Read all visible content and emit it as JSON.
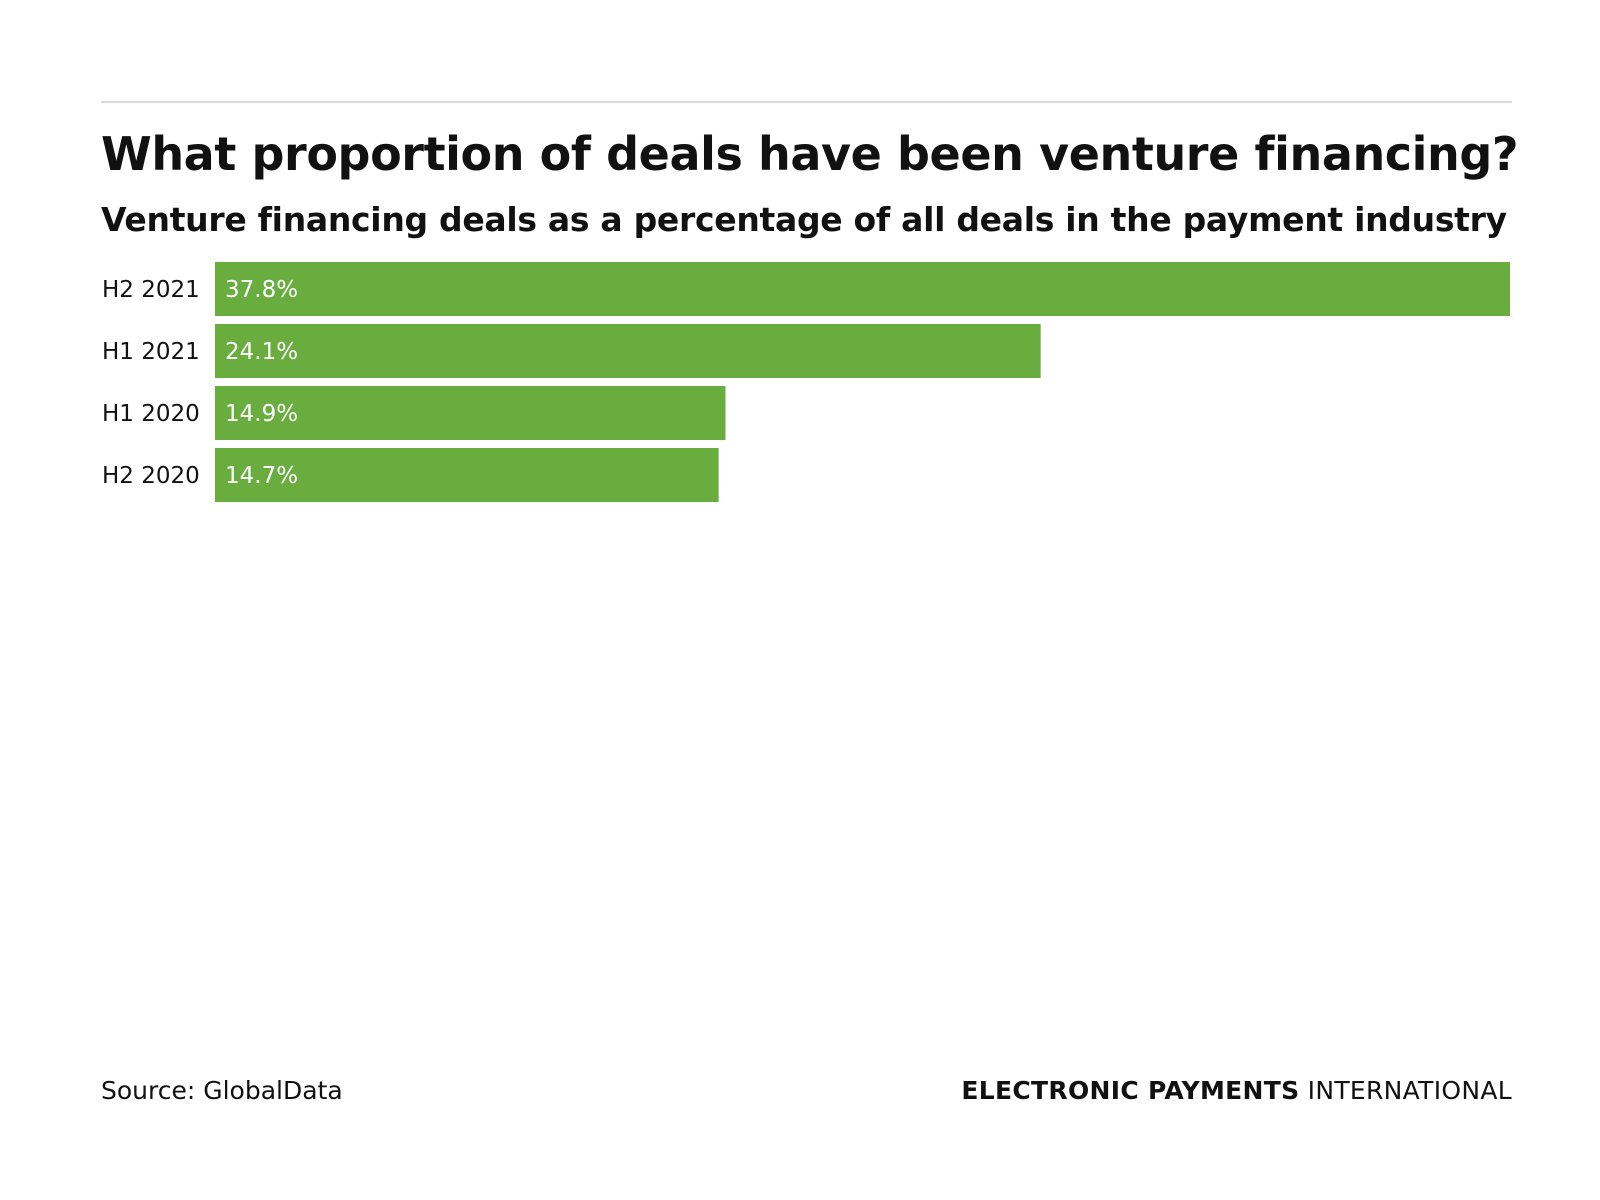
{
  "chart_data": {
    "type": "bar",
    "orientation": "horizontal",
    "title": "What proportion of deals have been venture financing?",
    "subtitle": "Venture financing deals as a percentage of all deals in the payment industry",
    "categories": [
      "H2 2021",
      "H1 2021",
      "H1 2020",
      "H2 2020"
    ],
    "values": [
      37.8,
      24.1,
      14.9,
      14.7
    ],
    "value_labels": [
      "37.8%",
      "24.1%",
      "14.9%",
      "14.7%"
    ],
    "xlim": [
      0,
      37.8
    ],
    "grid": false,
    "legend": "none",
    "bar_color": "#68ad3e",
    "label_color": "#ffffff"
  },
  "footer": {
    "source": "Source: GlobalData",
    "brand_bold": "ELECTRONIC PAYMENTS",
    "brand_light": "INTERNATIONAL"
  }
}
